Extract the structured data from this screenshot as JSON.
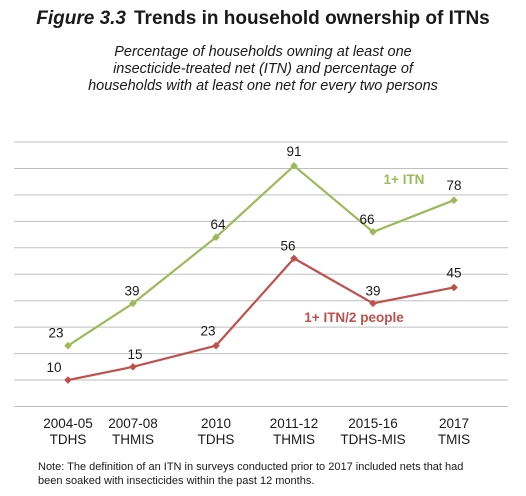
{
  "figure": {
    "number": "Figure 3.3",
    "title": "Trends in household ownership of ITNs",
    "subtitle_lines": [
      "Percentage of households owning at least one",
      "insecticide-treated net (ITN) and percentage of",
      "households with at least one net for every two persons"
    ],
    "note_lines": [
      "Note: The definition of an ITN in surveys conducted prior to 2017 included nets that had",
      "been soaked with insecticides within the past 12 months."
    ]
  },
  "chart_data": {
    "type": "line",
    "title": "Trends in household ownership of ITNs",
    "categories": [
      [
        "2004-05",
        "TDHS"
      ],
      [
        "2007-08",
        "THMIS"
      ],
      [
        "2010",
        "TDHS"
      ],
      [
        "2011-12",
        "THMIS"
      ],
      [
        "2015-16",
        "TDHS-MIS"
      ],
      [
        "2017",
        "TMIS"
      ]
    ],
    "series": [
      {
        "name": "1+ ITN",
        "values": [
          23,
          39,
          64,
          91,
          66,
          78
        ],
        "color": "#9bbb59"
      },
      {
        "name": "1+ ITN/2 people",
        "values": [
          10,
          15,
          23,
          56,
          39,
          45
        ],
        "color": "#c0504d"
      }
    ],
    "ylim": [
      0,
      100
    ],
    "grid": true,
    "y_tick_labels": false
  }
}
